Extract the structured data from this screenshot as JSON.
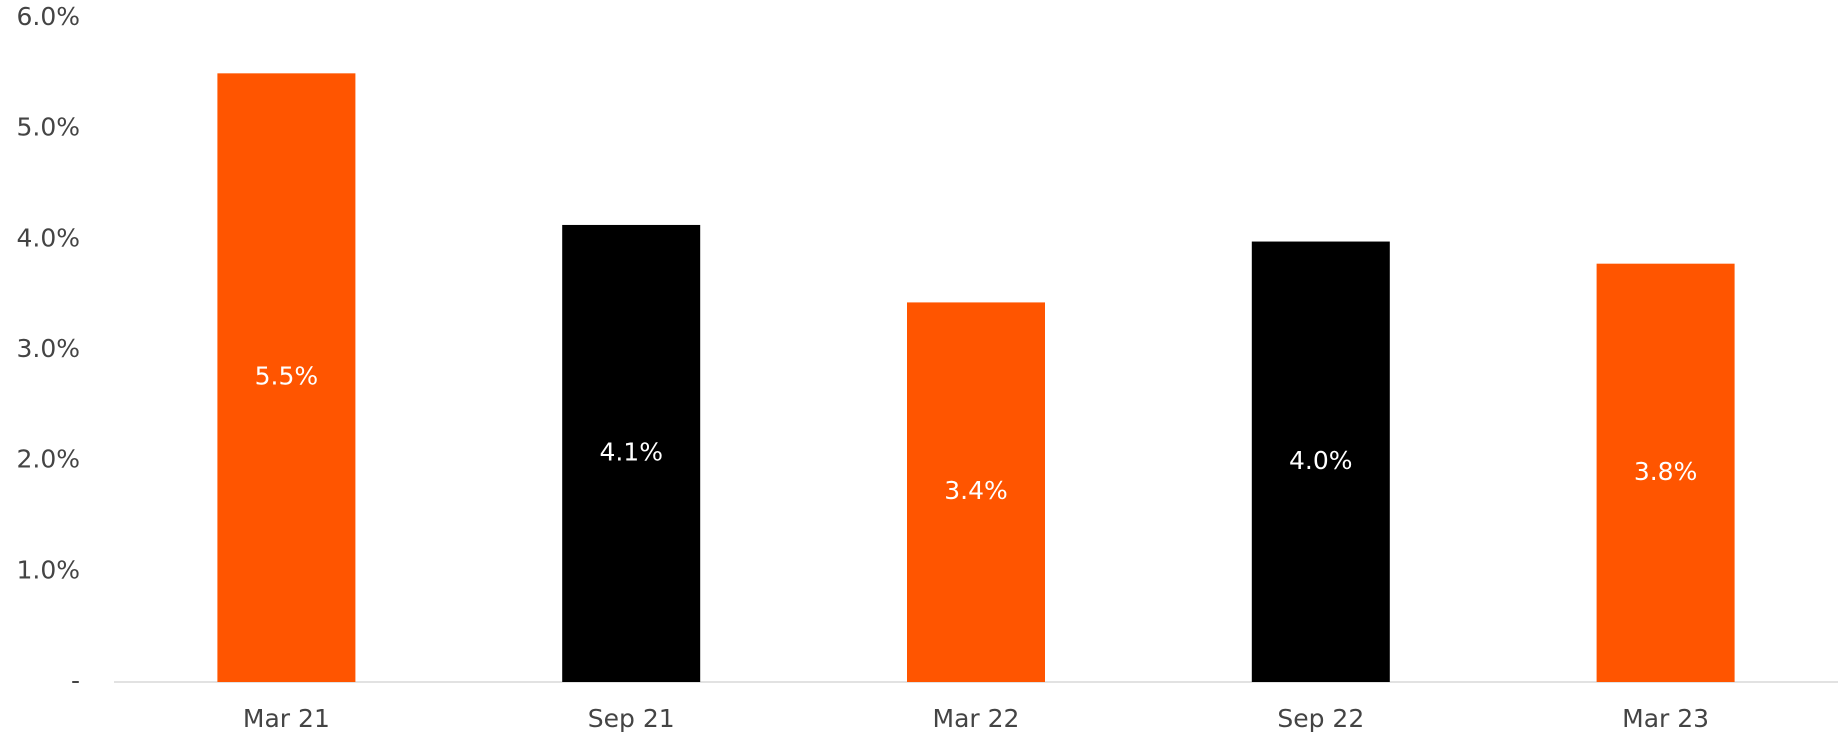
{
  "chart_data": {
    "type": "bar",
    "categories": [
      "Mar 21",
      "Sep 21",
      "Mar 22",
      "Sep 22",
      "Mar 23"
    ],
    "values": [
      5.5,
      4.13,
      3.43,
      3.98,
      3.78
    ],
    "value_labels": [
      "5.5%",
      "4.1%",
      "3.4%",
      "4.0%",
      "3.8%"
    ],
    "colors": [
      "#ff5500",
      "#000000",
      "#ff5500",
      "#000000",
      "#ff5500"
    ],
    "ylim": [
      0,
      6
    ],
    "yticks": [
      {
        "value": 0,
        "label": "-"
      },
      {
        "value": 1,
        "label": "1.0%"
      },
      {
        "value": 2,
        "label": "2.0%"
      },
      {
        "value": 3,
        "label": "3.0%"
      },
      {
        "value": 4,
        "label": "4.0%"
      },
      {
        "value": 5,
        "label": "5.0%"
      },
      {
        "value": 6,
        "label": "6.0%"
      }
    ],
    "grid": false
  }
}
